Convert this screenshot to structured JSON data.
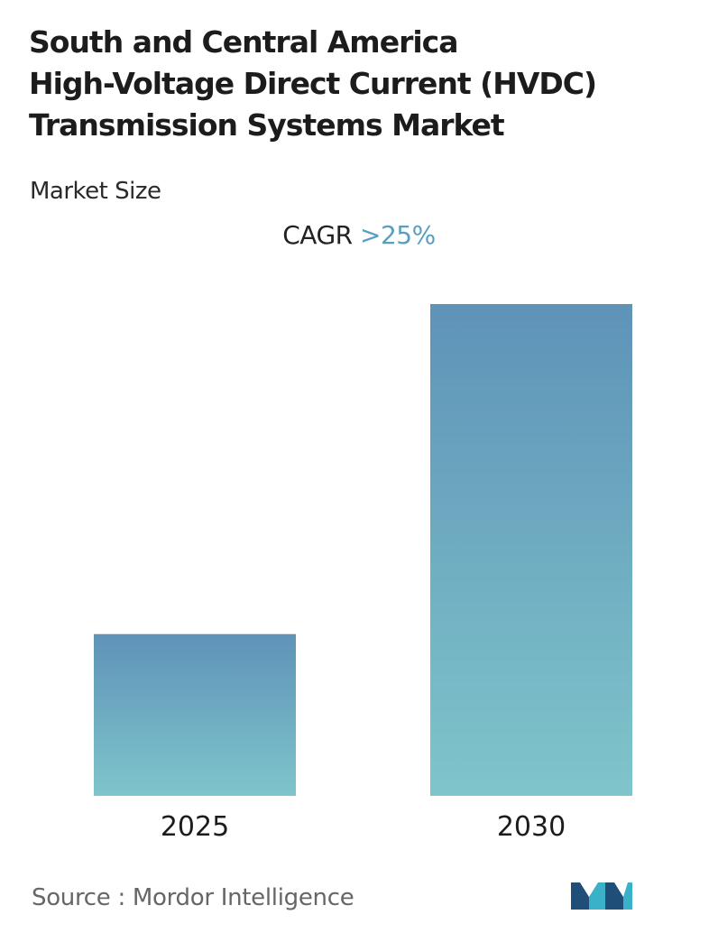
{
  "header": {
    "title_lines": [
      "South and Central America",
      "High-Voltage Direct Current (HVDC)",
      "Transmission Systems Market"
    ],
    "subtitle": "Market Size"
  },
  "cagr": {
    "label": "CAGR",
    "value": ">25%"
  },
  "chart_data": {
    "type": "bar",
    "title": "South and Central America High-Voltage Direct Current (HVDC) Transmission Systems Market",
    "subtitle": "Market Size",
    "categories": [
      "2025",
      "2030"
    ],
    "values": [
      1.0,
      3.04
    ],
    "xlabel": "",
    "ylabel": "",
    "ylim": [
      0,
      3.04
    ],
    "grid": false,
    "legend": "none",
    "annotation": "CAGR >25%",
    "colors": {
      "bar_top": "#5e93b8",
      "bar_bottom": "#7fc5cb"
    }
  },
  "footer": {
    "source": "Source :  Mordor Intelligence",
    "logo_icon": "mordor-intelligence-logo-icon",
    "logo_colors": [
      "#1f4e79",
      "#3ab0c9"
    ]
  }
}
